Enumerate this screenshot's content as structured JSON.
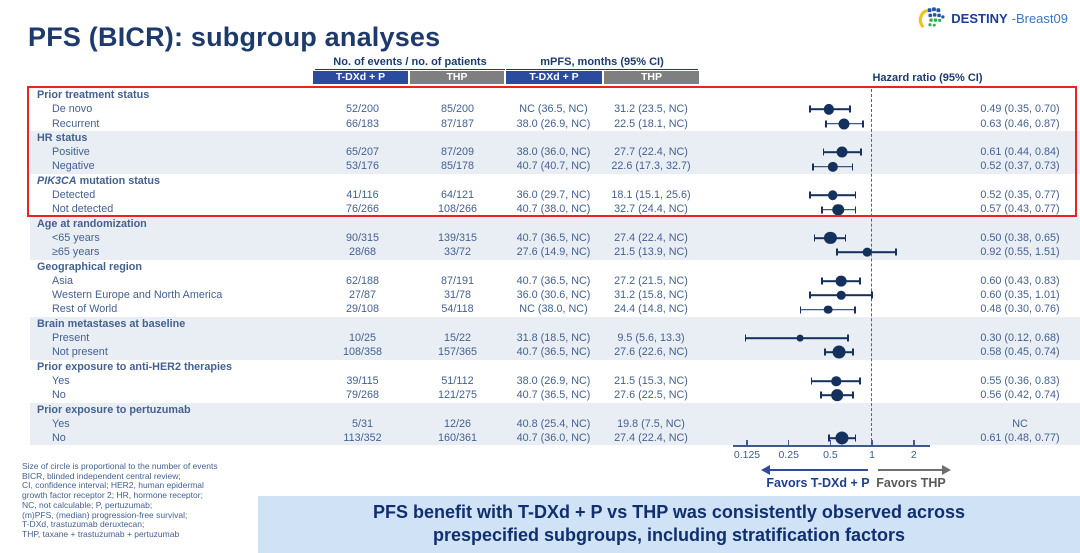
{
  "title": "PFS (BICR): subgroup analyses",
  "logo": {
    "bold": "DESTINY",
    "light": "-Breast09"
  },
  "table": {
    "col_headers": {
      "events": "No. of events / no. of patients",
      "mpfs": "mPFS, months (95% CI)",
      "hr": "Hazard ratio (95% CI)"
    },
    "arm_labels": {
      "tdxd": "T-DXd + P",
      "thp": "THP"
    },
    "groups": [
      {
        "label": "Prior treatment status",
        "shaded": false,
        "rows": [
          {
            "label": "De novo",
            "ev_tdxd": "52/200",
            "ev_thp": "85/200",
            "mpfs_tdxd": "NC (36.5, NC)",
            "mpfs_thp": "31.2 (23.5, NC)",
            "hr_text": "0.49 (0.35, 0.70)",
            "hr": 0.49,
            "lo": 0.35,
            "hi": 0.7
          },
          {
            "label": "Recurrent",
            "ev_tdxd": "66/183",
            "ev_thp": "87/187",
            "mpfs_tdxd": "38.0 (26.9, NC)",
            "mpfs_thp": "22.5 (18.1, NC)",
            "hr_text": "0.63 (0.46, 0.87)",
            "hr": 0.63,
            "lo": 0.46,
            "hi": 0.87
          }
        ]
      },
      {
        "label": "HR status",
        "shaded": true,
        "rows": [
          {
            "label": "Positive",
            "ev_tdxd": "65/207",
            "ev_thp": "87/209",
            "mpfs_tdxd": "38.0 (36.0, NC)",
            "mpfs_thp": "27.7 (22.4, NC)",
            "hr_text": "0.61 (0.44, 0.84)",
            "hr": 0.61,
            "lo": 0.44,
            "hi": 0.84
          },
          {
            "label": "Negative",
            "ev_tdxd": "53/176",
            "ev_thp": "85/178",
            "mpfs_tdxd": "40.7 (40.7, NC)",
            "mpfs_thp": "22.6 (17.3, 32.7)",
            "hr_text": "0.52 (0.37, 0.73)",
            "hr": 0.52,
            "lo": 0.37,
            "hi": 0.73
          }
        ]
      },
      {
        "label_italic": "PIK3CA",
        "label": " mutation status",
        "shaded": false,
        "rows": [
          {
            "label": "Detected",
            "ev_tdxd": "41/116",
            "ev_thp": "64/121",
            "mpfs_tdxd": "36.0 (29.7, NC)",
            "mpfs_thp": "18.1 (15.1, 25.6)",
            "hr_text": "0.52 (0.35, 0.77)",
            "hr": 0.52,
            "lo": 0.35,
            "hi": 0.77
          },
          {
            "label": "Not detected",
            "ev_tdxd": "76/266",
            "ev_thp": "108/266",
            "mpfs_tdxd": "40.7 (38.0, NC)",
            "mpfs_thp": "32.7 (24.4, NC)",
            "hr_text": "0.57 (0.43, 0.77)",
            "hr": 0.57,
            "lo": 0.43,
            "hi": 0.77
          }
        ]
      },
      {
        "label": "Age at randomization",
        "shaded": true,
        "rows": [
          {
            "label": "<65 years",
            "ev_tdxd": "90/315",
            "ev_thp": "139/315",
            "mpfs_tdxd": "40.7 (36.5, NC)",
            "mpfs_thp": "27.4 (22.4, NC)",
            "hr_text": "0.50 (0.38, 0.65)",
            "hr": 0.5,
            "lo": 0.38,
            "hi": 0.65
          },
          {
            "label": "≥65 years",
            "ev_tdxd": "28/68",
            "ev_thp": "33/72",
            "mpfs_tdxd": "27.6 (14.9, NC)",
            "mpfs_thp": "21.5 (13.9, NC)",
            "hr_text": "0.92 (0.55, 1.51)",
            "hr": 0.92,
            "lo": 0.55,
            "hi": 1.51
          }
        ]
      },
      {
        "label": "Geographical region",
        "shaded": false,
        "rows": [
          {
            "label": "Asia",
            "ev_tdxd": "62/188",
            "ev_thp": "87/191",
            "mpfs_tdxd": "40.7 (36.5, NC)",
            "mpfs_thp": "27.2 (21.5, NC)",
            "hr_text": "0.60 (0.43, 0.83)",
            "hr": 0.6,
            "lo": 0.43,
            "hi": 0.83
          },
          {
            "label": "Western Europe and North America",
            "ev_tdxd": "27/87",
            "ev_thp": "31/78",
            "mpfs_tdxd": "36.0 (30.6, NC)",
            "mpfs_thp": "31.2 (15.8, NC)",
            "hr_text": "0.60 (0.35, 1.01)",
            "hr": 0.6,
            "lo": 0.35,
            "hi": 1.01
          },
          {
            "label": "Rest of World",
            "ev_tdxd": "29/108",
            "ev_thp": "54/118",
            "mpfs_tdxd": "NC (38.0, NC)",
            "mpfs_thp": "24.4 (14.8, NC)",
            "hr_text": "0.48 (0.30, 0.76)",
            "hr": 0.48,
            "lo": 0.3,
            "hi": 0.76
          }
        ]
      },
      {
        "label": "Brain metastases at baseline",
        "shaded": true,
        "rows": [
          {
            "label": "Present",
            "ev_tdxd": "10/25",
            "ev_thp": "15/22",
            "mpfs_tdxd": "31.8 (18.5, NC)",
            "mpfs_thp": "9.5 (5.6, 13.3)",
            "hr_text": "0.30 (0.12, 0.68)",
            "hr": 0.3,
            "lo": 0.12,
            "hi": 0.68
          },
          {
            "label": "Not present",
            "ev_tdxd": "108/358",
            "ev_thp": "157/365",
            "mpfs_tdxd": "40.7 (36.5, NC)",
            "mpfs_thp": "27.6 (22.6, NC)",
            "hr_text": "0.58 (0.45, 0.74)",
            "hr": 0.58,
            "lo": 0.45,
            "hi": 0.74
          }
        ]
      },
      {
        "label": "Prior exposure to anti-HER2 therapies",
        "shaded": false,
        "rows": [
          {
            "label": "Yes",
            "ev_tdxd": "39/115",
            "ev_thp": "51/112",
            "mpfs_tdxd": "38.0 (26.9, NC)",
            "mpfs_thp": "21.5 (15.3, NC)",
            "hr_text": "0.55 (0.36, 0.83)",
            "hr": 0.55,
            "lo": 0.36,
            "hi": 0.83
          },
          {
            "label": "No",
            "ev_tdxd": "79/268",
            "ev_thp": "121/275",
            "mpfs_tdxd": "40.7 (36.5, NC)",
            "mpfs_thp": "27.6 (22.5, NC)",
            "hr_text": "0.56 (0.42, 0.74)",
            "hr": 0.56,
            "lo": 0.42,
            "hi": 0.74
          }
        ]
      },
      {
        "label": "Prior exposure to pertuzumab",
        "shaded": true,
        "rows": [
          {
            "label": "Yes",
            "ev_tdxd": "5/31",
            "ev_thp": "12/26",
            "mpfs_tdxd": "40.8 (25.4, NC)",
            "mpfs_thp": "19.8 (7.5, NC)",
            "hr_text": "NC",
            "hr": null,
            "lo": null,
            "hi": null
          },
          {
            "label": "No",
            "ev_tdxd": "113/352",
            "ev_thp": "160/361",
            "mpfs_tdxd": "40.7 (36.0, NC)",
            "mpfs_thp": "27.4 (22.4, NC)",
            "hr_text": "0.61 (0.48, 0.77)",
            "hr": 0.61,
            "lo": 0.48,
            "hi": 0.77
          }
        ]
      }
    ]
  },
  "forest": {
    "ticks": [
      {
        "value": 0.125,
        "label": "0.125"
      },
      {
        "value": 0.25,
        "label": "0.25"
      },
      {
        "value": 0.5,
        "label": "0.5"
      },
      {
        "value": 1,
        "label": "1"
      },
      {
        "value": 2,
        "label": "2"
      }
    ],
    "reference_line": 1,
    "favors_left": "Favors T-DXd + P",
    "favors_right": "Favors THP"
  },
  "footnotes": [
    "Size of circle is proportional to the number of events",
    "BICR, blinded independent central review;",
    "CI, confidence interval; HER2, human epidermal",
    "growth factor receptor 2; HR, hormone receptor;",
    "NC, not calculable; P, pertuzumab;",
    "(m)PFS, (median) progression-free survival;",
    "T-DXd, trastuzumab deruxtecan;",
    "THP, taxane + trastuzumab + pertuzumab"
  ],
  "banner": "PFS benefit with T-DXd + P vs THP was consistently observed across\nprespecified subgroups, including stratification factors",
  "colors": {
    "navy": "#1e3a6d",
    "cell_text": "#44618f",
    "bar_blue": "#2b4c9e",
    "bar_gray": "#7f7f7f",
    "marker": "#14315e",
    "band": "#e9eef5",
    "highlight_red": "#e9241f",
    "banner_bg": "#cfe2f6",
    "banner_text": "#0f2f6e"
  },
  "chart_data": {
    "type": "scatter",
    "subtype": "forest_plot",
    "title": "PFS (BICR): subgroup analyses",
    "xlabel": "Hazard ratio (95% CI)",
    "xscale": "log2",
    "xticks": [
      0.125,
      0.25,
      0.5,
      1,
      2
    ],
    "xlim": [
      0.125,
      2
    ],
    "reference_line": 1,
    "legend": {
      "left_arrow": "Favors T-DXd + P",
      "right_arrow": "Favors THP"
    },
    "points": [
      {
        "group": "Prior treatment status",
        "subgroup": "De novo",
        "hr": 0.49,
        "ci": [
          0.35,
          0.7
        ]
      },
      {
        "group": "Prior treatment status",
        "subgroup": "Recurrent",
        "hr": 0.63,
        "ci": [
          0.46,
          0.87
        ]
      },
      {
        "group": "HR status",
        "subgroup": "Positive",
        "hr": 0.61,
        "ci": [
          0.44,
          0.84
        ]
      },
      {
        "group": "HR status",
        "subgroup": "Negative",
        "hr": 0.52,
        "ci": [
          0.37,
          0.73
        ]
      },
      {
        "group": "PIK3CA mutation status",
        "subgroup": "Detected",
        "hr": 0.52,
        "ci": [
          0.35,
          0.77
        ]
      },
      {
        "group": "PIK3CA mutation status",
        "subgroup": "Not detected",
        "hr": 0.57,
        "ci": [
          0.43,
          0.77
        ]
      },
      {
        "group": "Age at randomization",
        "subgroup": "<65 years",
        "hr": 0.5,
        "ci": [
          0.38,
          0.65
        ]
      },
      {
        "group": "Age at randomization",
        "subgroup": "≥65 years",
        "hr": 0.92,
        "ci": [
          0.55,
          1.51
        ]
      },
      {
        "group": "Geographical region",
        "subgroup": "Asia",
        "hr": 0.6,
        "ci": [
          0.43,
          0.83
        ]
      },
      {
        "group": "Geographical region",
        "subgroup": "Western Europe and North America",
        "hr": 0.6,
        "ci": [
          0.35,
          1.01
        ]
      },
      {
        "group": "Geographical region",
        "subgroup": "Rest of World",
        "hr": 0.48,
        "ci": [
          0.3,
          0.76
        ]
      },
      {
        "group": "Brain metastases at baseline",
        "subgroup": "Present",
        "hr": 0.3,
        "ci": [
          0.12,
          0.68
        ]
      },
      {
        "group": "Brain metastases at baseline",
        "subgroup": "Not present",
        "hr": 0.58,
        "ci": [
          0.45,
          0.74
        ]
      },
      {
        "group": "Prior exposure to anti-HER2 therapies",
        "subgroup": "Yes",
        "hr": 0.55,
        "ci": [
          0.36,
          0.83
        ]
      },
      {
        "group": "Prior exposure to anti-HER2 therapies",
        "subgroup": "No",
        "hr": 0.56,
        "ci": [
          0.42,
          0.74
        ]
      },
      {
        "group": "Prior exposure to pertuzumab",
        "subgroup": "Yes",
        "hr": null,
        "ci": null
      },
      {
        "group": "Prior exposure to pertuzumab",
        "subgroup": "No",
        "hr": 0.61,
        "ci": [
          0.48,
          0.77
        ]
      }
    ]
  }
}
